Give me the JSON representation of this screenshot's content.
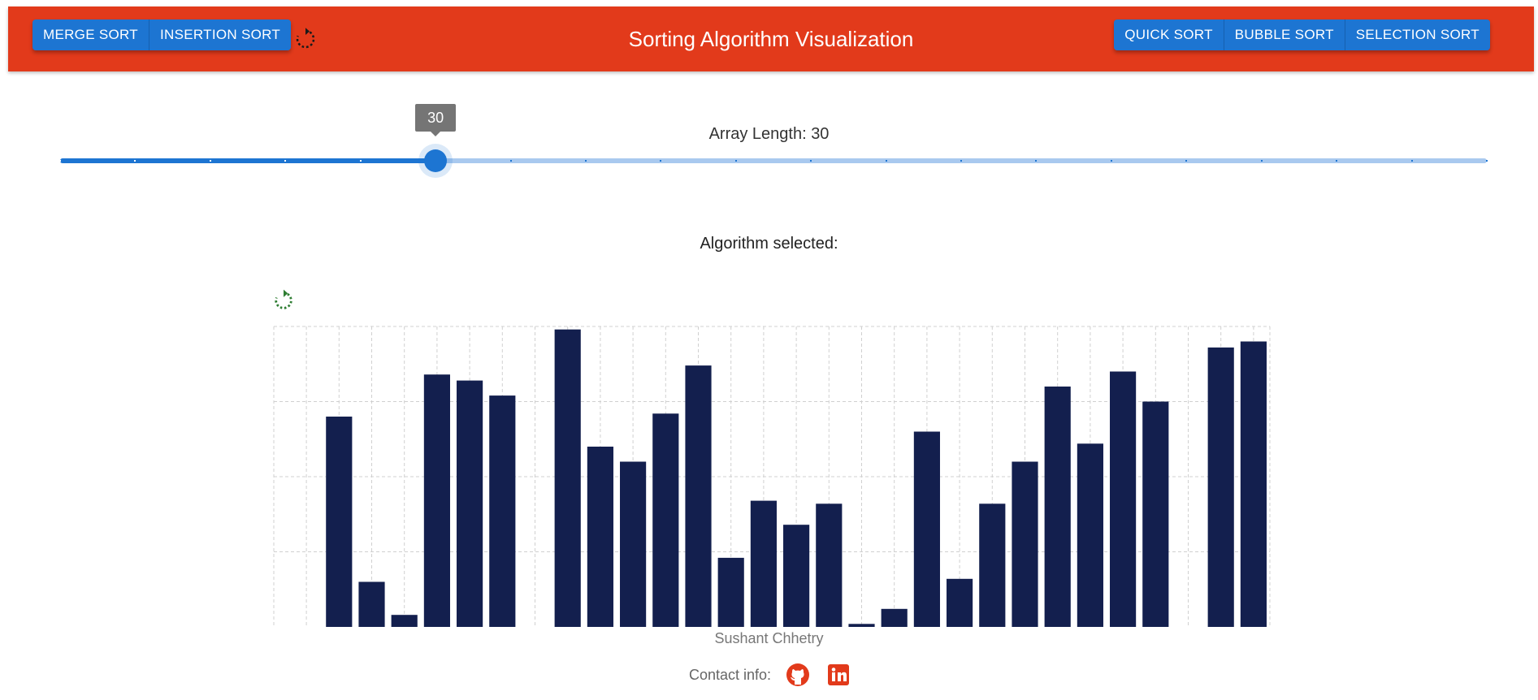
{
  "header": {
    "title": "Sorting Algorithm Visualization",
    "left_buttons": [
      "MERGE SORT",
      "INSERTION SORT"
    ],
    "right_buttons": [
      "QUICK SORT",
      "BUBBLE SORT",
      "SELECTION SORT"
    ],
    "reset_icon": "reset-icon",
    "brand_color": "#e23a1b",
    "button_color": "#1d75d2"
  },
  "slider": {
    "label": "Array Length: 30",
    "value": 30,
    "min": 5,
    "max": 100,
    "step": 5,
    "tooltip": "30"
  },
  "main": {
    "algorithm_label": "Algorithm selected:",
    "chart_reset_icon": "reset-icon",
    "chart_reset_color": "#2e7d32"
  },
  "chart_data": {
    "type": "bar",
    "values": [
      0,
      70,
      15,
      4,
      84,
      82,
      77,
      0,
      99,
      60,
      55,
      71,
      87,
      23,
      42,
      34,
      41,
      1,
      6,
      65,
      16,
      41,
      55,
      80,
      61,
      85,
      75,
      0,
      93,
      95
    ],
    "ylim": [
      0,
      100
    ],
    "grid": true,
    "bar_color": "#131f4e"
  },
  "footer": {
    "author": "Sushant Chhetry",
    "contact_label": "Contact info:",
    "icons": [
      "github-icon",
      "linkedin-icon"
    ],
    "icon_color": "#e23a1b"
  }
}
